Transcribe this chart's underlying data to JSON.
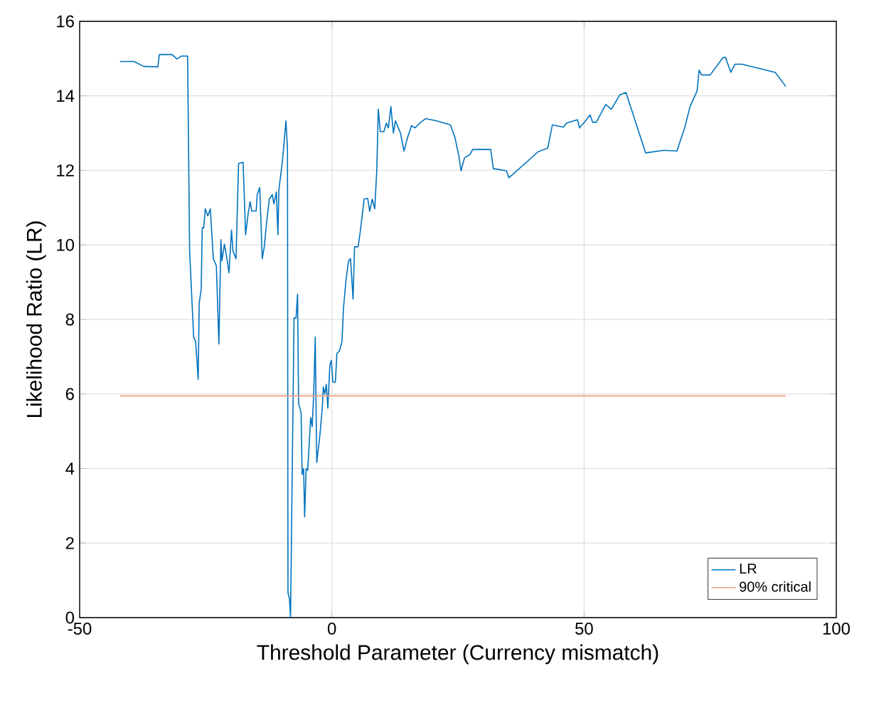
{
  "chart_data": {
    "type": "line",
    "xlabel": "Threshold Parameter (Currency mismatch)",
    "ylabel": "Likelihood Ratio (LR)",
    "xlim": [
      -50,
      100
    ],
    "xticks": [
      -50,
      0,
      50,
      100
    ],
    "ylim": [
      0,
      16
    ],
    "yticks": [
      0,
      2,
      4,
      6,
      8,
      10,
      12,
      14,
      16
    ],
    "grid": true,
    "legend": "bottom right",
    "series": [
      {
        "name": "LR",
        "color": "#0072bd",
        "x": [
          -42.0,
          -39.2,
          -37.3,
          -34.5,
          -34.2,
          -31.7,
          -30.7,
          -29.8,
          -28.6,
          -28.2,
          -27.4,
          -27.0,
          -26.5,
          -26.3,
          -25.9,
          -25.7,
          -25.4,
          -25.1,
          -24.6,
          -24.1,
          -23.5,
          -22.9,
          -22.4,
          -22.0,
          -21.8,
          -21.3,
          -20.8,
          -20.4,
          -19.9,
          -19.6,
          -19.0,
          -18.5,
          -17.6,
          -17.1,
          -16.6,
          -16.2,
          -15.9,
          -15.0,
          -14.8,
          -14.3,
          -13.8,
          -13.4,
          -12.9,
          -12.4,
          -11.8,
          -11.5,
          -11.0,
          -10.7,
          -10.5,
          -9.8,
          -9.1,
          -8.8,
          -8.7,
          -8.4,
          -8.2,
          -7.5,
          -7.1,
          -6.8,
          -6.6,
          -6.1,
          -5.9,
          -5.6,
          -5.4,
          -5.1,
          -4.8,
          -4.2,
          -3.9,
          -3.6,
          -3.3,
          -3.0,
          -2.4,
          -1.9,
          -1.7,
          -1.4,
          -1.1,
          -0.8,
          -0.4,
          -0.1,
          0.2,
          0.7,
          1.0,
          1.5,
          2.0,
          2.3,
          2.8,
          3.3,
          3.7,
          4.2,
          4.5,
          5.2,
          5.6,
          6.4,
          7.1,
          7.5,
          8.0,
          8.5,
          8.9,
          9.2,
          9.6,
          10.3,
          10.8,
          11.2,
          11.7,
          12.2,
          12.6,
          13.6,
          14.3,
          15.0,
          15.8,
          16.5,
          17.4,
          18.6,
          20.7,
          23.5,
          24.4,
          25.2,
          25.6,
          26.3,
          27.4,
          27.9,
          31.5,
          32.0,
          34.6,
          35.1,
          40.9,
          42.8,
          43.7,
          45.9,
          46.5,
          48.7,
          49.1,
          50.3,
          51.2,
          51.7,
          52.4,
          54.3,
          55.4,
          57.1,
          58.3,
          62.2,
          65.8,
          68.4,
          70.0,
          71.0,
          72.4,
          72.8,
          73.3,
          75.0,
          77.5,
          78.0,
          79.1,
          79.9,
          81.3,
          87.9,
          90.0
        ],
        "values": [
          14.92,
          14.92,
          14.79,
          14.78,
          15.11,
          15.11,
          14.99,
          15.07,
          15.07,
          9.83,
          7.53,
          7.4,
          6.39,
          8.44,
          8.82,
          10.46,
          10.46,
          10.97,
          10.78,
          10.97,
          9.63,
          9.44,
          7.34,
          10.14,
          9.57,
          10.02,
          9.63,
          9.25,
          10.4,
          9.83,
          9.63,
          12.18,
          12.22,
          10.27,
          10.84,
          11.16,
          10.91,
          10.91,
          11.35,
          11.54,
          9.63,
          9.95,
          10.65,
          11.23,
          11.35,
          11.1,
          11.42,
          10.27,
          11.48,
          12.25,
          13.33,
          12.57,
          0.66,
          0.5,
          0,
          8.04,
          8.04,
          8.68,
          5.75,
          5.5,
          3.84,
          4.0,
          2.7,
          4.0,
          3.95,
          5.37,
          5.12,
          6.0,
          7.53,
          4.16,
          4.86,
          5.62,
          6.19,
          6.0,
          6.26,
          5.62,
          6.77,
          6.9,
          6.32,
          6.32,
          7.09,
          7.15,
          7.41,
          8.3,
          9.06,
          9.57,
          9.63,
          8.55,
          9.95,
          9.95,
          10.33,
          11.23,
          11.25,
          10.9,
          11.23,
          10.97,
          11.99,
          13.64,
          13.04,
          13.04,
          13.27,
          13.14,
          13.71,
          13.0,
          13.33,
          13.0,
          12.52,
          12.88,
          13.2,
          13.14,
          13.27,
          13.39,
          13.33,
          13.22,
          12.88,
          12.37,
          11.99,
          12.34,
          12.43,
          12.56,
          12.56,
          12.05,
          11.99,
          11.8,
          12.5,
          12.6,
          13.22,
          13.16,
          13.27,
          13.36,
          13.14,
          13.33,
          13.49,
          13.29,
          13.29,
          13.77,
          13.64,
          14.03,
          14.09,
          12.47,
          12.54,
          12.52,
          13.17,
          13.71,
          14.13,
          14.69,
          14.56,
          14.56,
          15.02,
          15.04,
          14.63,
          14.85,
          14.85,
          14.63,
          14.25
        ]
      },
      {
        "name": "90% critical",
        "color": "#eda07e",
        "x": [
          -42.0,
          90.0
        ],
        "values": [
          5.95,
          5.95
        ]
      }
    ]
  }
}
